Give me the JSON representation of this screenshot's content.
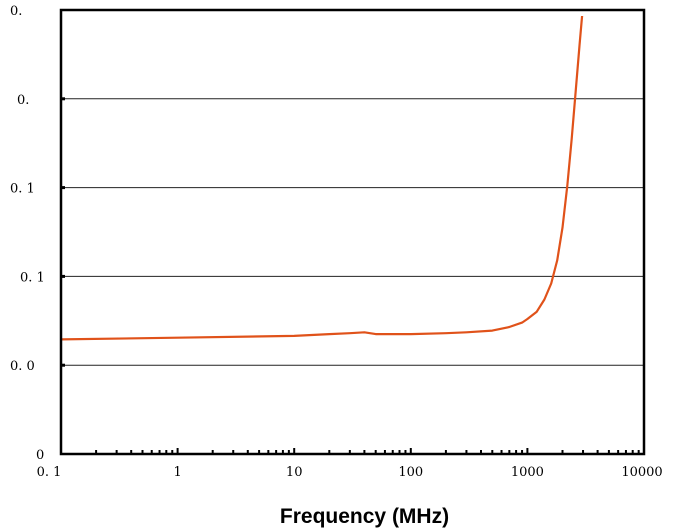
{
  "chart_data": {
    "type": "line",
    "title": "",
    "xlabel": "Frequency (MHz)",
    "ylabel": "",
    "x_scale": "log",
    "xlim": [
      0.1,
      10000
    ],
    "ylim": [
      0,
      5
    ],
    "x_ticks": [
      0.1,
      1,
      10,
      100,
      1000,
      10000
    ],
    "x_tick_labels": [
      "0. 1",
      "1",
      "10",
      "100",
      "1000",
      "10000"
    ],
    "y_ticks": [
      5,
      4,
      3,
      2,
      1,
      0
    ],
    "y_tick_labels": [
      "0.",
      "0.",
      "0. 1",
      "0. 1",
      "0. 0",
      "0"
    ],
    "grid": "horizontal",
    "series": [
      {
        "color": "#e0521a",
        "x": [
          0.1,
          1,
          10,
          20,
          30,
          40,
          50,
          100,
          200,
          300,
          500,
          700,
          900,
          1000,
          1200,
          1400,
          1600,
          1800,
          2000,
          2200,
          2400,
          2600,
          2800,
          3000,
          3100,
          3200
        ],
        "y": [
          1.29,
          1.31,
          1.33,
          1.35,
          1.36,
          1.37,
          1.35,
          1.35,
          1.36,
          1.37,
          1.39,
          1.43,
          1.48,
          1.52,
          1.6,
          1.74,
          1.92,
          2.18,
          2.55,
          3.02,
          3.55,
          4.1,
          4.6,
          5.05,
          5.25,
          5.4
        ]
      }
    ]
  }
}
